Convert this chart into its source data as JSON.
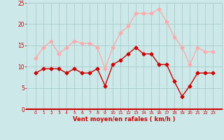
{
  "hours": [
    0,
    1,
    2,
    3,
    4,
    5,
    6,
    7,
    8,
    9,
    10,
    11,
    12,
    13,
    14,
    15,
    16,
    17,
    18,
    19,
    20,
    21,
    22,
    23
  ],
  "wind_avg": [
    8.5,
    9.5,
    9.5,
    9.5,
    8.5,
    9.5,
    8.5,
    8.5,
    9.5,
    5.5,
    10.5,
    11.5,
    13.0,
    14.5,
    13.0,
    13.0,
    10.5,
    10.5,
    6.5,
    3.0,
    5.5,
    8.5,
    8.5,
    8.5
  ],
  "wind_gust": [
    12.0,
    14.5,
    16.0,
    13.0,
    14.5,
    16.0,
    15.5,
    15.5,
    14.5,
    9.5,
    14.5,
    18.0,
    19.5,
    22.5,
    22.5,
    22.5,
    23.5,
    20.5,
    17.0,
    14.5,
    10.5,
    14.5,
    13.5,
    13.5
  ],
  "avg_color": "#cc0000",
  "gust_color": "#ffaaaa",
  "bg_color": "#cce8e8",
  "grid_color": "#aacccc",
  "axis_color": "#cc0000",
  "xlabel": "Vent moyen/en rafales ( km/h )",
  "ylim": [
    0,
    25
  ],
  "yticks": [
    0,
    5,
    10,
    15,
    20,
    25
  ],
  "marker_size": 2.5,
  "linewidth": 1.0
}
